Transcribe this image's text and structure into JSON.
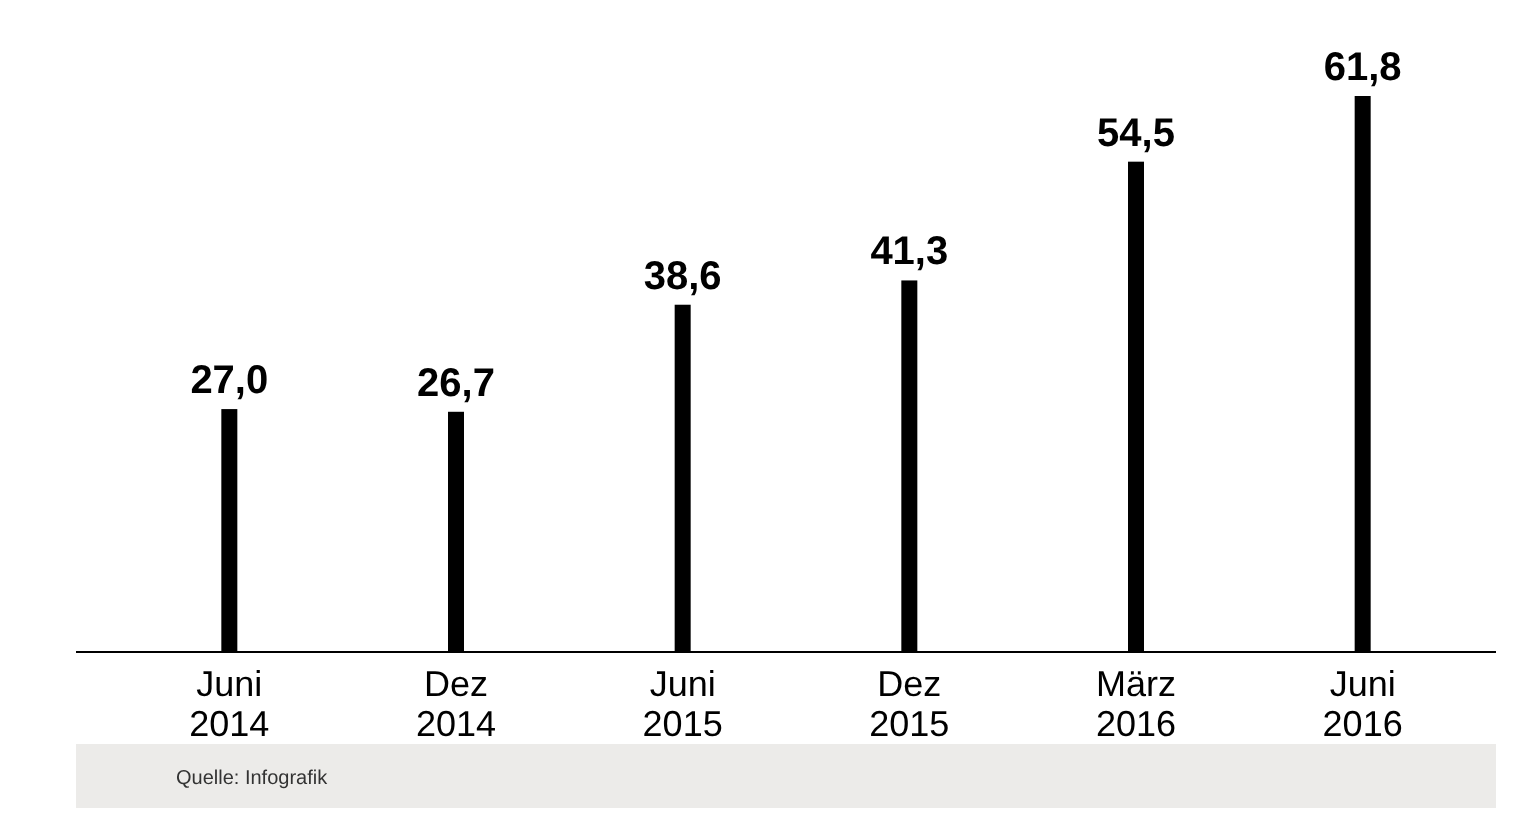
{
  "chart_data": {
    "type": "bar",
    "categories": [
      "Juni 2014",
      "Dez 2014",
      "Juni 2015",
      "Dez 2015",
      "März 2016",
      "Juni 2016"
    ],
    "values": [
      27.0,
      26.7,
      38.6,
      41.3,
      54.5,
      61.8
    ],
    "value_labels": [
      "27,0",
      "26,7",
      "38,6",
      "41,3",
      "54,5",
      "61,8"
    ],
    "color": "#000000",
    "annotations": [
      "Quelle: Infografik"
    ]
  }
}
